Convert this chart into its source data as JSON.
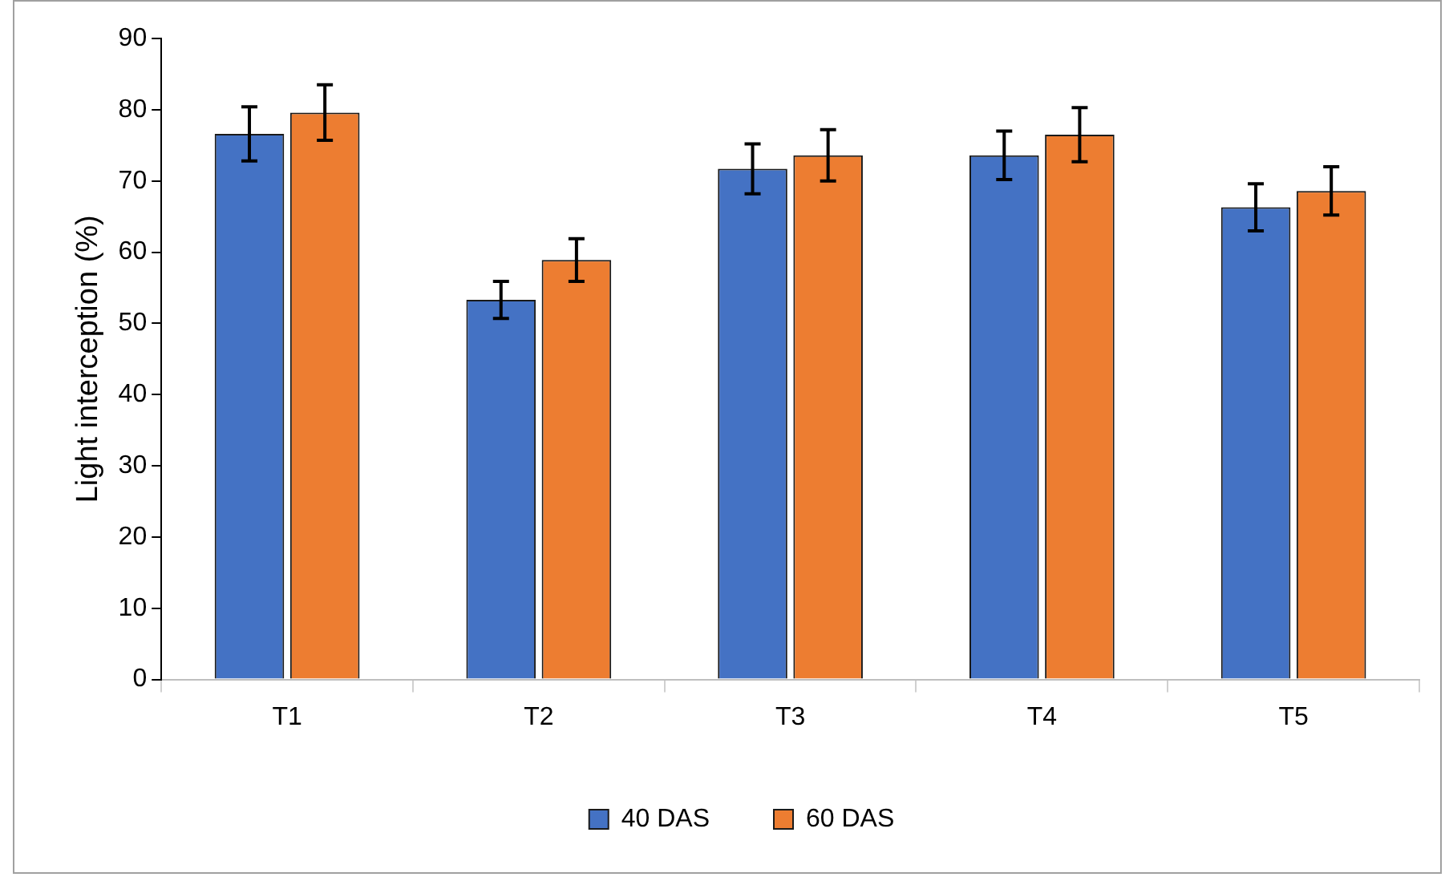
{
  "chart_data": {
    "type": "bar",
    "ylabel": "Light interception (%)",
    "categories": [
      "T1",
      "T2",
      "T3",
      "T4",
      "T5"
    ],
    "series": [
      {
        "name": "40 DAS",
        "color": "#4472c4",
        "values": [
          76.6,
          53.3,
          71.7,
          73.6,
          66.3
        ],
        "errors": [
          3.8,
          2.6,
          3.5,
          3.4,
          3.3
        ]
      },
      {
        "name": "60 DAS",
        "color": "#ed7d31",
        "values": [
          79.6,
          58.9,
          73.6,
          76.5,
          68.6
        ],
        "errors": [
          3.9,
          3.0,
          3.6,
          3.8,
          3.4
        ]
      }
    ],
    "ylim": [
      0,
      90
    ],
    "yticks": [
      0,
      10,
      20,
      30,
      40,
      50,
      60,
      70,
      80,
      90
    ],
    "grid": false,
    "legend": "bottom"
  }
}
